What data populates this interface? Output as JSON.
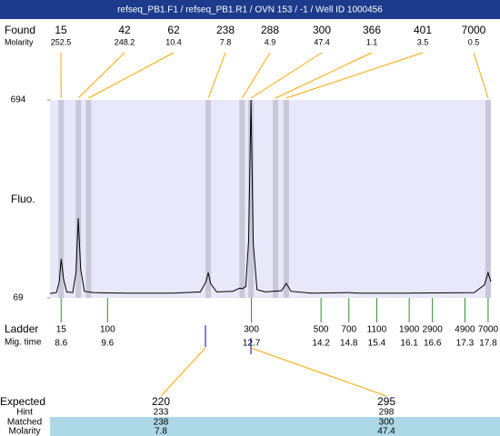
{
  "header": {
    "title": "refseq_PB1.F1 / refseq_PB1.R1 / OVN 153 / -1 / Well ID 1000456"
  },
  "chart_data": {
    "type": "electropherogram",
    "y_label": "Fluo.",
    "ylim": [
      69,
      694
    ],
    "yticks": [
      69,
      694
    ],
    "xlim": [
      8.36,
      17.86
    ],
    "color": "#000000",
    "x": [
      8.36,
      8.5,
      8.56,
      8.6,
      8.65,
      8.72,
      8.85,
      8.92,
      8.97,
      9.02,
      9.1,
      9.3,
      10.0,
      11.0,
      11.6,
      11.72,
      11.77,
      11.82,
      11.95,
      12.3,
      12.45,
      12.5,
      12.58,
      12.64,
      12.69,
      12.74,
      12.82,
      13.0,
      13.35,
      13.45,
      13.55,
      14.0,
      14.8,
      15.0,
      16.0,
      17.5,
      17.72,
      17.8,
      17.86
    ],
    "values": [
      83,
      86,
      120,
      192,
      130,
      88,
      86,
      150,
      321,
      160,
      90,
      86,
      84,
      84,
      88,
      120,
      149,
      115,
      88,
      90,
      100,
      98,
      105,
      250,
      694,
      240,
      95,
      88,
      92,
      115,
      90,
      84,
      86,
      84,
      84,
      86,
      110,
      149,
      120
    ],
    "found": {
      "label": "Found",
      "molarity_label": "Molarity",
      "sizes": [
        15,
        42,
        62,
        238,
        288,
        300,
        366,
        401,
        7000
      ],
      "molarity": [
        252.5,
        248.2,
        10.4,
        7.8,
        4.9,
        47.4,
        1.1,
        3.5,
        0.5
      ],
      "times": [
        8.6,
        8.97,
        9.19,
        11.77,
        12.5,
        12.69,
        13.22,
        13.45,
        17.8
      ]
    },
    "ladder": {
      "label": "Ladder",
      "time_label": "Mig. time",
      "sizes": [
        15,
        100,
        300,
        500,
        700,
        1100,
        1900,
        2900,
        4900,
        7000
      ],
      "times": [
        8.6,
        9.6,
        12.7,
        14.2,
        14.8,
        15.4,
        16.1,
        16.6,
        17.3,
        17.8
      ]
    },
    "expected": {
      "label": "Expected",
      "values": [
        220,
        295
      ],
      "hint_label": "Hint",
      "hint": [
        233,
        298
      ],
      "matched_label": "Matched",
      "matched": [
        238,
        300
      ],
      "molarity_label": "Molarity",
      "molarity": [
        7.8,
        47.4
      ]
    }
  }
}
